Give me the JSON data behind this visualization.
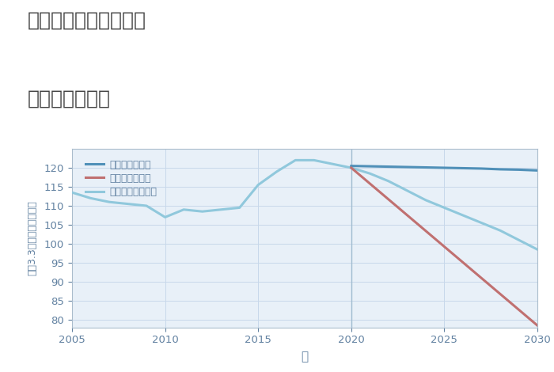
{
  "title_line1": "兵庫県西宮市天道町の",
  "title_line2": "土地の価格推移",
  "xlabel": "年",
  "ylabel": "坪（3.3㎡）単価（万円）",
  "xlim": [
    2005,
    2030
  ],
  "ylim": [
    78,
    125
  ],
  "yticks": [
    80,
    85,
    90,
    95,
    100,
    105,
    110,
    115,
    120
  ],
  "xticks": [
    2005,
    2010,
    2015,
    2020,
    2025,
    2030
  ],
  "figure_bg": "#ffffff",
  "plot_bg": "#e8f0f8",
  "grid_color": "#c8d8ea",
  "good_scenario": {
    "label": "グッドシナリオ",
    "color": "#5090b8",
    "x": [
      2020,
      2021,
      2022,
      2023,
      2024,
      2025,
      2026,
      2027,
      2028,
      2029,
      2030
    ],
    "y": [
      120.5,
      120.4,
      120.3,
      120.2,
      120.1,
      120.0,
      119.9,
      119.8,
      119.6,
      119.5,
      119.3
    ]
  },
  "bad_scenario": {
    "label": "バッドシナリオ",
    "color": "#c07070",
    "x": [
      2020,
      2030
    ],
    "y": [
      120.0,
      78.5
    ]
  },
  "normal_scenario": {
    "label": "ノーマルシナリオ",
    "color": "#90c8dc",
    "x": [
      2005,
      2006,
      2007,
      2008,
      2009,
      2010,
      2011,
      2012,
      2013,
      2014,
      2015,
      2016,
      2017,
      2018,
      2019,
      2020,
      2021,
      2022,
      2023,
      2024,
      2025,
      2026,
      2027,
      2028,
      2029,
      2030
    ],
    "y": [
      113.5,
      112.0,
      111.0,
      110.5,
      110.0,
      107.0,
      109.0,
      108.5,
      109.0,
      109.5,
      115.5,
      119.0,
      122.0,
      122.0,
      121.0,
      120.0,
      118.5,
      116.5,
      114.0,
      111.5,
      109.5,
      107.5,
      105.5,
      103.5,
      101.0,
      98.5
    ]
  },
  "vline_x": 2020,
  "vline_color": "#a0bcd0",
  "title_color": "#404040",
  "axis_color": "#6080a0",
  "tick_color": "#6080a0",
  "legend_label_color": "#6080a0"
}
